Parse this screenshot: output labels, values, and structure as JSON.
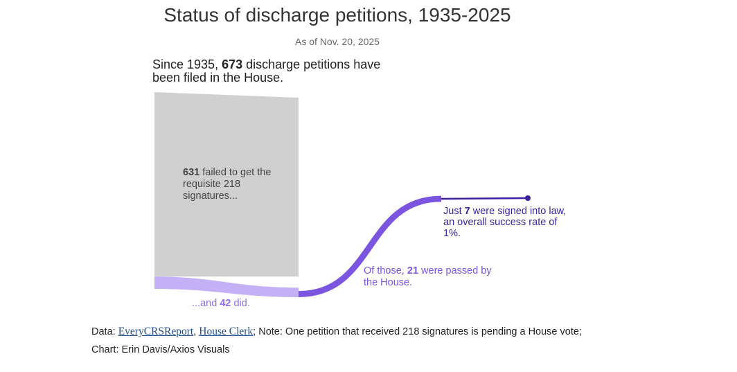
{
  "title": "Status of discharge petitions, 1935-2025",
  "subtitle": "As of Nov. 20, 2025",
  "intro": {
    "pre": "Since 1935, ",
    "total": "673",
    "post": " discharge petitions have been filed in the House."
  },
  "failed_label": {
    "count": "631",
    "text": " failed to get the requisite 218 signatures..."
  },
  "did_label": {
    "pre": "...and ",
    "count": "42",
    "post": " did."
  },
  "passed_label": {
    "pre": "Of those, ",
    "count": "21",
    "post": " were passed by the House."
  },
  "signed_label": {
    "pre": "Just ",
    "count": "7",
    "post": " were signed into law, an overall success rate of 1%."
  },
  "source": {
    "data_prefix": "Data: ",
    "link1": "EveryCRSReport",
    "sep": ", ",
    "link2": "House Clerk",
    "rest": "; Note: One petition that received 218 signatures is pending a House vote; Chart: Erin Davis/Axios Visuals"
  },
  "colors": {
    "failed": "#d0d0d0",
    "did": "#c4b0f5",
    "passed": "#7b54e0",
    "signed": "#3a1f9e"
  },
  "chart_data": {
    "type": "sankey",
    "nodes": [
      "Filed",
      "Failed to get 218 signatures",
      "Got 218 signatures",
      "Passed by the House",
      "Signed into law"
    ],
    "flows": [
      {
        "from": "Filed",
        "to": "Failed to get 218 signatures",
        "value": 631
      },
      {
        "from": "Filed",
        "to": "Got 218 signatures",
        "value": 42
      },
      {
        "from": "Got 218 signatures",
        "to": "Passed by the House",
        "value": 21
      },
      {
        "from": "Passed by the House",
        "to": "Signed into law",
        "value": 7
      }
    ],
    "total": 673
  }
}
